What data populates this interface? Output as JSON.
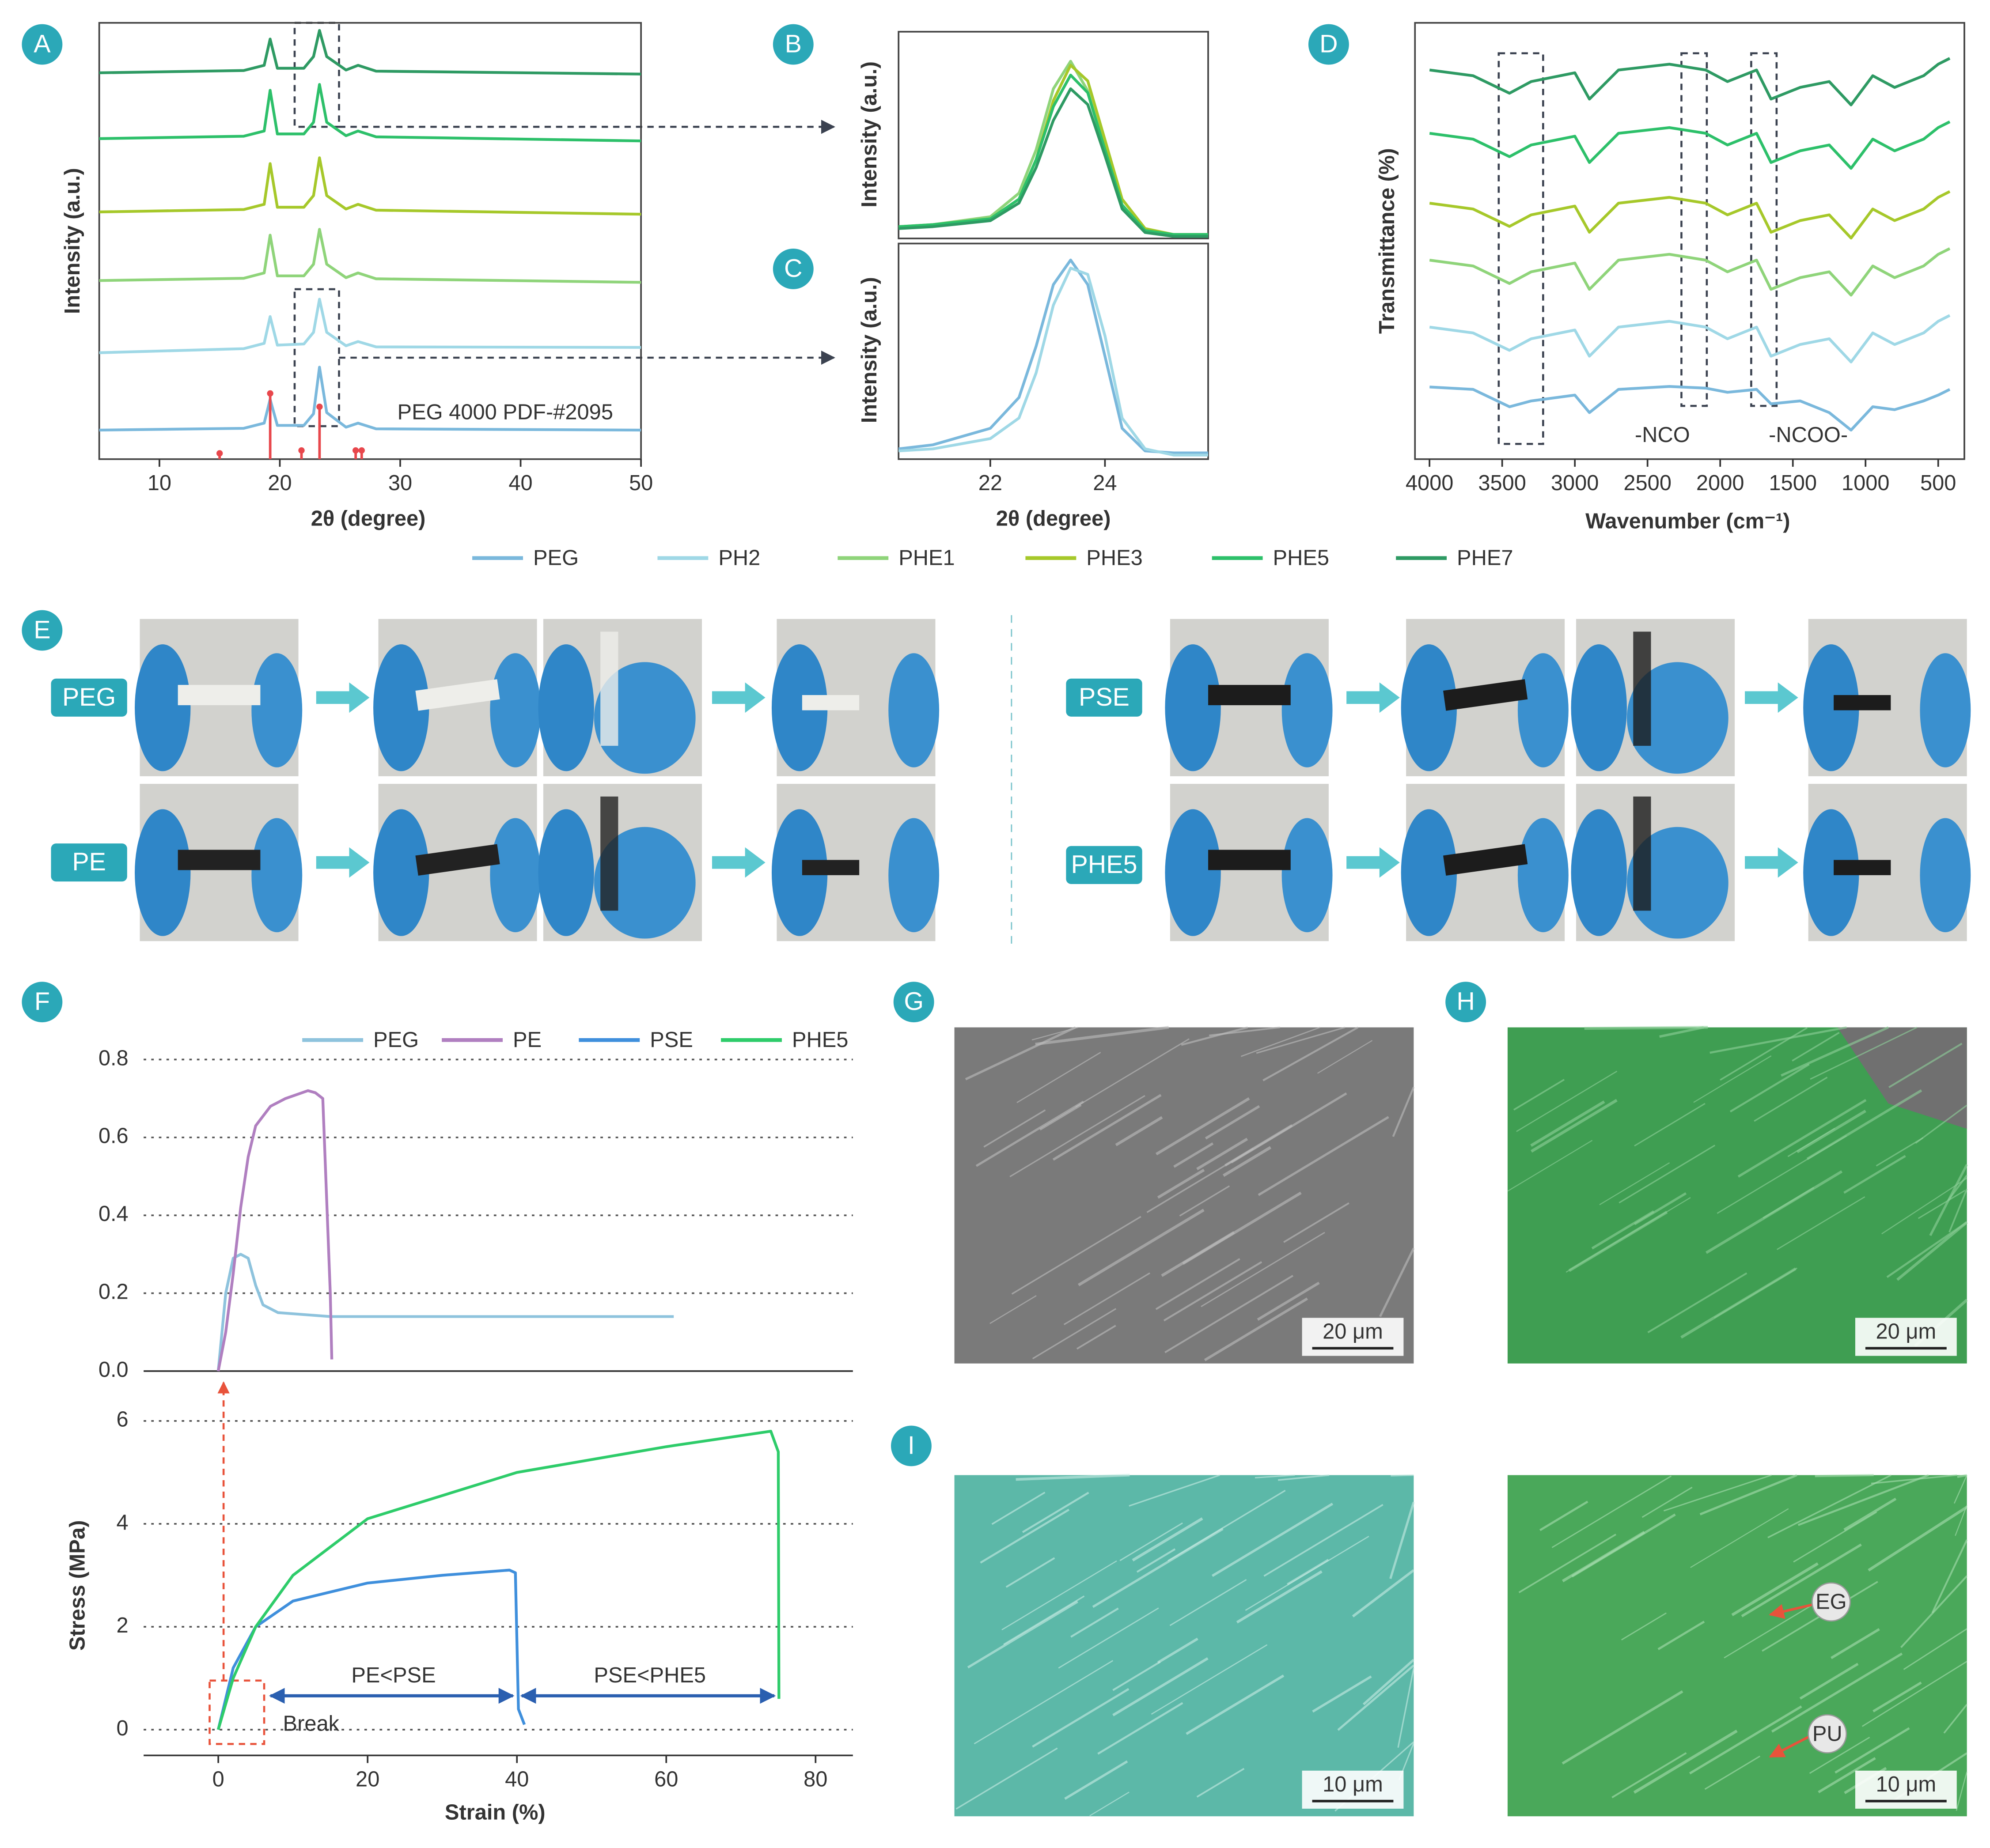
{
  "panels": [
    "A",
    "B",
    "C",
    "D",
    "E",
    "F",
    "G",
    "H",
    "I"
  ],
  "photos": {
    "labels": [
      "PEG",
      "PE",
      "PSE",
      "PHE5"
    ]
  },
  "sem": {
    "scale_bars": [
      "20 μm",
      "20 μm",
      "10 μm",
      "10 μm"
    ],
    "labels": [
      "EG",
      "PU"
    ]
  },
  "chart_data": [
    {
      "type": "line",
      "xlabel": "2θ (degree)",
      "ylabel": "Intensity (a.u.)",
      "xlim": [
        5,
        50
      ],
      "xticks": [
        10,
        20,
        30,
        40,
        50
      ],
      "ylim": [
        0,
        7.5
      ],
      "annotations": [
        "PEG 4000 PDF-#2095"
      ],
      "x": [
        5,
        17,
        18.7,
        19.2,
        19.8,
        22,
        22.8,
        23.3,
        23.9,
        25.5,
        26.5,
        28,
        50
      ],
      "series": [
        {
          "name": "PEG",
          "color": "#7ab8dc",
          "values": [
            0.5,
            0.53,
            0.62,
            1.03,
            0.58,
            0.58,
            0.78,
            1.58,
            0.8,
            0.55,
            0.62,
            0.52,
            0.5
          ]
        },
        {
          "name": "PH2",
          "color": "#9fd8e6",
          "values": [
            1.83,
            1.9,
            1.99,
            2.45,
            1.96,
            1.98,
            2.18,
            2.75,
            2.18,
            1.95,
            2.02,
            1.93,
            1.92
          ]
        },
        {
          "name": "PHE1",
          "color": "#8fd47a",
          "values": [
            3.07,
            3.11,
            3.2,
            3.85,
            3.15,
            3.15,
            3.35,
            3.95,
            3.35,
            3.12,
            3.2,
            3.1,
            3.04
          ]
        },
        {
          "name": "PHE3",
          "color": "#a6c82a",
          "values": [
            4.25,
            4.29,
            4.38,
            5.08,
            4.33,
            4.33,
            4.53,
            5.18,
            4.53,
            4.3,
            4.38,
            4.28,
            4.21
          ]
        },
        {
          "name": "PHE5",
          "color": "#2dc06a",
          "values": [
            5.51,
            5.55,
            5.64,
            6.34,
            5.59,
            5.59,
            5.79,
            6.44,
            5.79,
            5.56,
            5.64,
            5.54,
            5.47
          ]
        },
        {
          "name": "PHE7",
          "color": "#2e9a63",
          "values": [
            6.64,
            6.68,
            6.77,
            7.22,
            6.72,
            6.72,
            6.92,
            7.37,
            6.92,
            6.69,
            6.77,
            6.67,
            6.62
          ]
        }
      ],
      "reference": {
        "color": "#e8474c",
        "x": [
          15,
          19.2,
          21.8,
          23.3,
          26.3,
          26.8
        ],
        "values": [
          0.1,
          1.13,
          0.15,
          0.9,
          0.15,
          0.15
        ]
      }
    },
    {
      "type": "line",
      "ylabel": "Intensity (a.u.)",
      "xlim": [
        20.4,
        25.8
      ],
      "ylim": [
        0,
        1.05
      ],
      "x": [
        20.4,
        21,
        22,
        22.5,
        22.8,
        23.1,
        23.4,
        23.7,
        24,
        24.3,
        24.7,
        25.2,
        25.8
      ],
      "series": [
        {
          "color": "#8fd47a",
          "values": [
            0.05,
            0.07,
            0.11,
            0.23,
            0.45,
            0.76,
            0.9,
            0.75,
            0.45,
            0.16,
            0.04,
            0.02,
            0.02
          ]
        },
        {
          "color": "#a6c82a",
          "values": [
            0.06,
            0.07,
            0.1,
            0.2,
            0.4,
            0.7,
            0.88,
            0.8,
            0.5,
            0.2,
            0.05,
            0.02,
            0.02
          ]
        },
        {
          "color": "#2dc06a",
          "values": [
            0.06,
            0.07,
            0.1,
            0.2,
            0.4,
            0.67,
            0.83,
            0.74,
            0.45,
            0.17,
            0.04,
            0.02,
            0.02
          ]
        },
        {
          "color": "#2e9a63",
          "values": [
            0.05,
            0.06,
            0.09,
            0.18,
            0.36,
            0.6,
            0.76,
            0.68,
            0.42,
            0.15,
            0.03,
            0.01,
            0.01
          ]
        }
      ]
    },
    {
      "type": "line",
      "xlabel": "2θ (degree)",
      "ylabel": "Intensity (a.u.)",
      "xlim": [
        20.4,
        25.8
      ],
      "xticks": [
        22,
        24
      ],
      "ylim": [
        0,
        1.05
      ],
      "x": [
        20.4,
        21,
        22,
        22.5,
        22.8,
        23.1,
        23.4,
        23.7,
        24,
        24.3,
        24.7,
        25.2,
        25.8
      ],
      "series": [
        {
          "color": "#7ab8dc",
          "values": [
            0.05,
            0.07,
            0.15,
            0.3,
            0.55,
            0.85,
            0.97,
            0.85,
            0.5,
            0.15,
            0.04,
            0.03,
            0.03
          ]
        },
        {
          "color": "#9fd8e6",
          "values": [
            0.04,
            0.05,
            0.1,
            0.2,
            0.42,
            0.75,
            0.93,
            0.9,
            0.6,
            0.2,
            0.05,
            0.02,
            0.02
          ]
        }
      ]
    },
    {
      "type": "line",
      "xlabel": "Wavenumber (cm⁻¹)",
      "ylabel": "Transmittance (%)",
      "xlim": [
        4100,
        320
      ],
      "xticks": [
        4000,
        3500,
        3000,
        2500,
        2000,
        1500,
        1000,
        500
      ],
      "ylim": [
        0,
        7.5
      ],
      "annotations": [
        "-NCO",
        "-NCOO-"
      ],
      "x": [
        4000,
        3700,
        3450,
        3300,
        3000,
        2900,
        2700,
        2350,
        2100,
        1950,
        1750,
        1650,
        1450,
        1250,
        1100,
        950,
        800,
        600,
        500,
        420
      ],
      "series": [
        {
          "color": "#7ab8dc",
          "values": [
            1.24,
            1.2,
            0.9,
            1.0,
            1.1,
            0.8,
            1.2,
            1.25,
            1.22,
            1.15,
            1.2,
            0.95,
            1.0,
            0.8,
            0.5,
            0.9,
            0.85,
            1.0,
            1.1,
            1.2
          ]
        },
        {
          "color": "#9fd8e6",
          "values": [
            2.27,
            2.17,
            1.87,
            2.07,
            2.22,
            1.77,
            2.27,
            2.37,
            2.27,
            2.07,
            2.27,
            1.77,
            1.97,
            2.07,
            1.67,
            2.17,
            1.97,
            2.17,
            2.37,
            2.47
          ]
        },
        {
          "color": "#8fd47a",
          "values": [
            3.42,
            3.32,
            3.02,
            3.22,
            3.37,
            2.92,
            3.42,
            3.52,
            3.42,
            3.22,
            3.42,
            2.92,
            3.12,
            3.22,
            2.82,
            3.32,
            3.12,
            3.32,
            3.52,
            3.62
          ]
        },
        {
          "color": "#a6c82a",
          "values": [
            4.4,
            4.3,
            4.0,
            4.2,
            4.35,
            3.9,
            4.4,
            4.5,
            4.4,
            4.2,
            4.4,
            3.9,
            4.1,
            4.2,
            3.8,
            4.3,
            4.1,
            4.3,
            4.5,
            4.6
          ]
        },
        {
          "color": "#2dc06a",
          "values": [
            5.6,
            5.5,
            5.2,
            5.4,
            5.55,
            5.1,
            5.6,
            5.7,
            5.6,
            5.4,
            5.6,
            5.1,
            5.3,
            5.4,
            5.0,
            5.5,
            5.3,
            5.5,
            5.7,
            5.8
          ]
        },
        {
          "color": "#2e9a63",
          "values": [
            6.69,
            6.59,
            6.29,
            6.49,
            6.64,
            6.19,
            6.69,
            6.79,
            6.69,
            6.49,
            6.69,
            6.19,
            6.39,
            6.49,
            6.09,
            6.59,
            6.39,
            6.59,
            6.79,
            6.89
          ]
        }
      ]
    },
    {
      "type": "line",
      "xlim": [
        -10,
        85
      ],
      "ylim": [
        0,
        0.85
      ],
      "grid": true,
      "yticks": [
        {
          "value": 0,
          "label": "0.0"
        },
        0.2,
        0.4,
        0.6,
        0.8
      ],
      "series": [
        {
          "name": "PEG",
          "color": "#8ec3dd",
          "x": [
            0,
            1,
            2,
            3,
            4,
            5,
            6,
            8,
            15,
            61
          ],
          "values": [
            0,
            0.2,
            0.29,
            0.3,
            0.29,
            0.22,
            0.17,
            0.15,
            0.14,
            0.14
          ]
        },
        {
          "name": "PE",
          "color": "#b07fc0",
          "x": [
            0,
            1,
            2,
            3,
            4,
            5,
            7,
            9,
            12,
            13,
            14,
            15,
            15.2
          ],
          "values": [
            0,
            0.1,
            0.25,
            0.42,
            0.55,
            0.63,
            0.68,
            0.7,
            0.72,
            0.715,
            0.7,
            0.2,
            0.03
          ]
        }
      ]
    },
    {
      "type": "line",
      "xlabel": "Strain (%)",
      "ylabel": "Stress (MPa)",
      "xlim": [
        -10,
        85
      ],
      "xticks": [
        0,
        20,
        40,
        60,
        80
      ],
      "ylim": [
        -0.5,
        6.5
      ],
      "yticks": [
        0,
        2,
        4,
        6
      ],
      "grid": true,
      "annotations": [
        "PE<PSE",
        "PSE<PHE5",
        "Break"
      ],
      "series": [
        {
          "name": "PSE",
          "color": "#3f8fdc",
          "x": [
            0,
            2,
            5,
            10,
            20,
            30,
            39,
            39.8,
            40.2,
            41
          ],
          "values": [
            0,
            1.2,
            2,
            2.5,
            2.85,
            3,
            3.1,
            3.05,
            0.4,
            0.1
          ]
        },
        {
          "name": "PHE5",
          "color": "#2ecc6a",
          "x": [
            0,
            2,
            5,
            10,
            20,
            40,
            60,
            74,
            75,
            75.1
          ],
          "values": [
            0,
            1.0,
            2.0,
            3.0,
            4.1,
            5.0,
            5.5,
            5.8,
            5.4,
            0.6
          ]
        }
      ]
    }
  ]
}
